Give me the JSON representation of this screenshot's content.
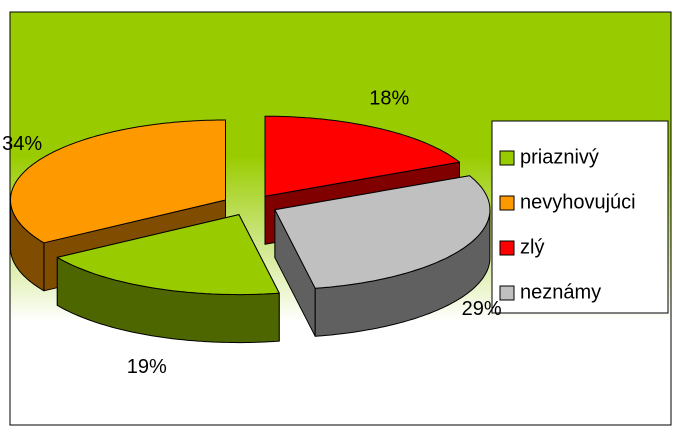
{
  "chart_data": {
    "type": "pie",
    "categories": [
      "priaznivý",
      "nevyhovujúci",
      "zlý",
      "neznámy"
    ],
    "values": [
      19,
      34,
      18,
      29
    ],
    "value_labels": [
      "19%",
      "34%",
      "18%",
      "29%"
    ],
    "colors": [
      "#99cc00",
      "#ff9900",
      "#ff0000",
      "#c0c0c0"
    ],
    "legend": "right"
  }
}
